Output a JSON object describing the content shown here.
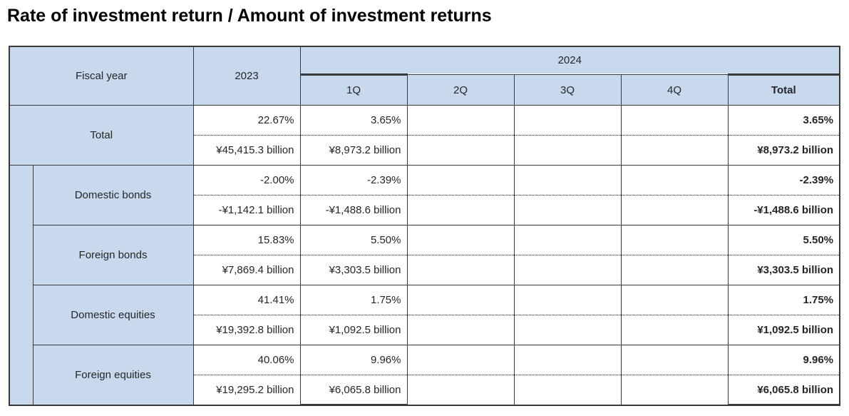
{
  "page_title": "Rate of investment return / Amount of investment returns",
  "colors": {
    "header_fill": "#c8d9ee",
    "border": "#3a3a3a",
    "title_text": "#000000",
    "value_text": "#262626"
  },
  "chart_data": {
    "type": "table",
    "title": "Rate of investment return / Amount of investment returns",
    "corner_label": "Fiscal year",
    "col_2023_label": "2023",
    "col_2024_label": "2024",
    "quarter_headers": [
      "1Q",
      "2Q",
      "3Q",
      "4Q",
      "Total"
    ],
    "highlighted_columns": [
      "1Q",
      "Total"
    ],
    "rows": [
      {
        "label": "Total",
        "indent": false,
        "cells": {
          "fy2023": {
            "rate": "22.67%",
            "amount": "¥45,415.3 billion"
          },
          "q1": {
            "rate": "3.65%",
            "amount": "¥8,973.2 billion"
          },
          "q2": {
            "rate": "",
            "amount": ""
          },
          "q3": {
            "rate": "",
            "amount": ""
          },
          "q4": {
            "rate": "",
            "amount": ""
          },
          "total": {
            "rate": "3.65%",
            "amount": "¥8,973.2 billion"
          }
        }
      },
      {
        "label": "Domestic bonds",
        "indent": true,
        "cells": {
          "fy2023": {
            "rate": "-2.00%",
            "amount": "-¥1,142.1 billion"
          },
          "q1": {
            "rate": "-2.39%",
            "amount": "-¥1,488.6 billion"
          },
          "q2": {
            "rate": "",
            "amount": ""
          },
          "q3": {
            "rate": "",
            "amount": ""
          },
          "q4": {
            "rate": "",
            "amount": ""
          },
          "total": {
            "rate": "-2.39%",
            "amount": "-¥1,488.6 billion"
          }
        }
      },
      {
        "label": "Foreign bonds",
        "indent": true,
        "cells": {
          "fy2023": {
            "rate": "15.83%",
            "amount": "¥7,869.4 billion"
          },
          "q1": {
            "rate": "5.50%",
            "amount": "¥3,303.5 billion"
          },
          "q2": {
            "rate": "",
            "amount": ""
          },
          "q3": {
            "rate": "",
            "amount": ""
          },
          "q4": {
            "rate": "",
            "amount": ""
          },
          "total": {
            "rate": "5.50%",
            "amount": "¥3,303.5 billion"
          }
        }
      },
      {
        "label": "Domestic equities",
        "indent": true,
        "cells": {
          "fy2023": {
            "rate": "41.41%",
            "amount": "¥19,392.8 billion"
          },
          "q1": {
            "rate": "1.75%",
            "amount": "¥1,092.5 billion"
          },
          "q2": {
            "rate": "",
            "amount": ""
          },
          "q3": {
            "rate": "",
            "amount": ""
          },
          "q4": {
            "rate": "",
            "amount": ""
          },
          "total": {
            "rate": "1.75%",
            "amount": "¥1,092.5 billion"
          }
        }
      },
      {
        "label": "Foreign equities",
        "indent": true,
        "cells": {
          "fy2023": {
            "rate": "40.06%",
            "amount": "¥19,295.2 billion"
          },
          "q1": {
            "rate": "9.96%",
            "amount": "¥6,065.8 billion"
          },
          "q2": {
            "rate": "",
            "amount": ""
          },
          "q3": {
            "rate": "",
            "amount": ""
          },
          "q4": {
            "rate": "",
            "amount": ""
          },
          "total": {
            "rate": "9.96%",
            "amount": "¥6,065.8 billion"
          }
        }
      }
    ]
  }
}
